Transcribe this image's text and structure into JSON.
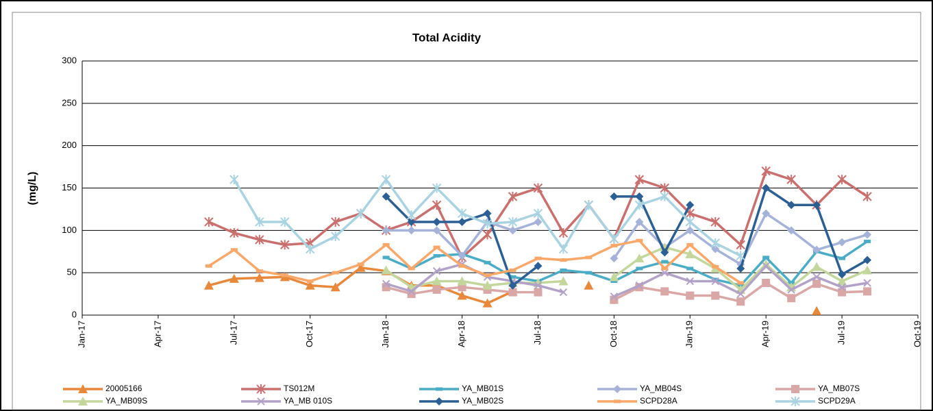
{
  "chart_data": {
    "type": "line",
    "title": "Total Acidity",
    "y_label": "(mg/L)",
    "x": [
      "2017-06",
      "2017-07",
      "2017-08",
      "2017-09",
      "2017-10",
      "2017-11",
      "2017-12",
      "2018-01",
      "2018-02",
      "2018-03",
      "2018-04",
      "2018-05",
      "2018-06",
      "2018-07",
      "2018-08",
      "2018-09",
      "2018-10",
      "2018-11",
      "2018-12",
      "2019-01",
      "2019-02",
      "2019-03",
      "2019-04",
      "2019-05",
      "2019-06",
      "2019-07",
      "2019-08"
    ],
    "xlim": [
      "2017-01",
      "2019-10"
    ],
    "xticks": [
      {
        "value": "2017-01",
        "label": "Jan-17"
      },
      {
        "value": "2017-04",
        "label": "Apr-17"
      },
      {
        "value": "2017-07",
        "label": "Jul-17"
      },
      {
        "value": "2017-10",
        "label": "Oct-17"
      },
      {
        "value": "2018-01",
        "label": "Jan-18"
      },
      {
        "value": "2018-04",
        "label": "Apr-18"
      },
      {
        "value": "2018-07",
        "label": "Jul-18"
      },
      {
        "value": "2018-10",
        "label": "Oct-18"
      },
      {
        "value": "2019-01",
        "label": "Jan-19"
      },
      {
        "value": "2019-04",
        "label": "Apr-19"
      },
      {
        "value": "2019-07",
        "label": "Jul-19"
      },
      {
        "value": "2019-10",
        "label": "Oct-19"
      }
    ],
    "ylim": [
      0,
      300
    ],
    "yticks": [
      0,
      50,
      100,
      150,
      200,
      250,
      300
    ],
    "grid": true,
    "series": [
      {
        "name": "20005166",
        "color": "#e8883a",
        "marker": "triangle",
        "values": [
          35,
          43,
          44,
          45,
          35,
          33,
          56,
          52,
          35,
          35,
          23,
          14,
          28,
          null,
          null,
          35,
          null,
          null,
          null,
          null,
          null,
          null,
          null,
          null,
          5,
          null,
          null
        ]
      },
      {
        "name": "TS012M",
        "color": "#c9706e",
        "marker": "star",
        "values": [
          110,
          97,
          89,
          83,
          85,
          110,
          120,
          100,
          110,
          130,
          68,
          95,
          140,
          150,
          97,
          130,
          90,
          160,
          150,
          120,
          110,
          83,
          170,
          160,
          130,
          160,
          140
        ]
      },
      {
        "name": "YA_MB01S",
        "color": "#4bacc6",
        "marker": "dash",
        "values": [
          null,
          null,
          null,
          null,
          null,
          null,
          null,
          68,
          55,
          70,
          72,
          62,
          45,
          40,
          53,
          50,
          40,
          55,
          63,
          55,
          42,
          35,
          68,
          38,
          75,
          67,
          87
        ]
      },
      {
        "name": "YA_MB04S",
        "color": "#a5b3d9",
        "marker": "diamond",
        "values": [
          null,
          null,
          null,
          null,
          null,
          null,
          null,
          100,
          100,
          100,
          70,
          110,
          100,
          110,
          null,
          null,
          67,
          110,
          80,
          100,
          78,
          60,
          120,
          100,
          77,
          86,
          95
        ]
      },
      {
        "name": "YA_MB07S",
        "color": "#d9a7a5",
        "marker": "square",
        "values": [
          null,
          null,
          null,
          null,
          null,
          null,
          null,
          33,
          25,
          30,
          33,
          30,
          27,
          27,
          null,
          null,
          18,
          33,
          28,
          23,
          23,
          16,
          38,
          20,
          37,
          27,
          28
        ]
      },
      {
        "name": "YA_MB09S",
        "color": "#c3d69b",
        "marker": "triangle",
        "values": [
          null,
          null,
          null,
          null,
          null,
          null,
          null,
          53,
          33,
          40,
          40,
          35,
          38,
          38,
          40,
          null,
          45,
          67,
          80,
          72,
          55,
          30,
          60,
          33,
          57,
          40,
          53
        ]
      },
      {
        "name": "YA_MB 010S",
        "color": "#b3a2c7",
        "marker": "x",
        "values": [
          null,
          null,
          null,
          null,
          null,
          null,
          null,
          37,
          28,
          52,
          60,
          45,
          40,
          35,
          27,
          null,
          22,
          35,
          50,
          40,
          40,
          25,
          58,
          30,
          45,
          33,
          38
        ]
      },
      {
        "name": "YA_MB02S",
        "color": "#2c5f93",
        "marker": "diamond",
        "values": [
          null,
          null,
          null,
          null,
          null,
          null,
          null,
          140,
          110,
          110,
          110,
          120,
          35,
          58,
          null,
          null,
          140,
          140,
          74,
          130,
          null,
          55,
          150,
          130,
          130,
          48,
          65
        ]
      },
      {
        "name": "SCPD28A",
        "color": "#f9a86a",
        "marker": "dash",
        "values": [
          58,
          77,
          52,
          47,
          40,
          50,
          60,
          83,
          55,
          80,
          58,
          47,
          53,
          67,
          65,
          68,
          82,
          88,
          55,
          83,
          57,
          38,
          null,
          null,
          null,
          null,
          null
        ]
      },
      {
        "name": "SCPD29A",
        "color": "#a9d3e0",
        "marker": "star",
        "values": [
          null,
          160,
          110,
          110,
          78,
          93,
          120,
          160,
          118,
          150,
          120,
          108,
          110,
          120,
          78,
          130,
          90,
          130,
          140,
          110,
          85,
          70,
          null,
          null,
          null,
          null,
          null
        ]
      }
    ]
  }
}
